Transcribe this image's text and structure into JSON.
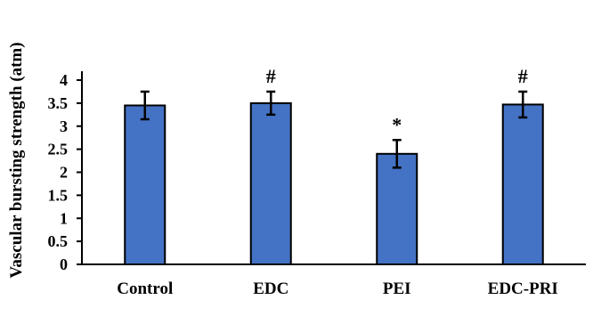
{
  "chart_data": {
    "type": "bar",
    "categories": [
      "Control",
      "EDC",
      "PEI",
      "EDC-PRI"
    ],
    "values": [
      3.45,
      3.5,
      2.4,
      3.47
    ],
    "errors": [
      0.3,
      0.25,
      0.3,
      0.28
    ],
    "annotations": [
      "",
      "#",
      "*",
      "#"
    ],
    "ylabel": "Vascular bursting strength (atm)",
    "xlabel": "",
    "ylim": [
      0,
      4
    ],
    "yticks": [
      "0",
      "0.5",
      "1",
      "1.5",
      "2",
      "2.5",
      "3",
      "3.5",
      "4"
    ],
    "grid": false,
    "legend": "none",
    "colors": {
      "bar": "#4472c4",
      "bar_edge": "#000000",
      "axis": "#000000"
    }
  }
}
